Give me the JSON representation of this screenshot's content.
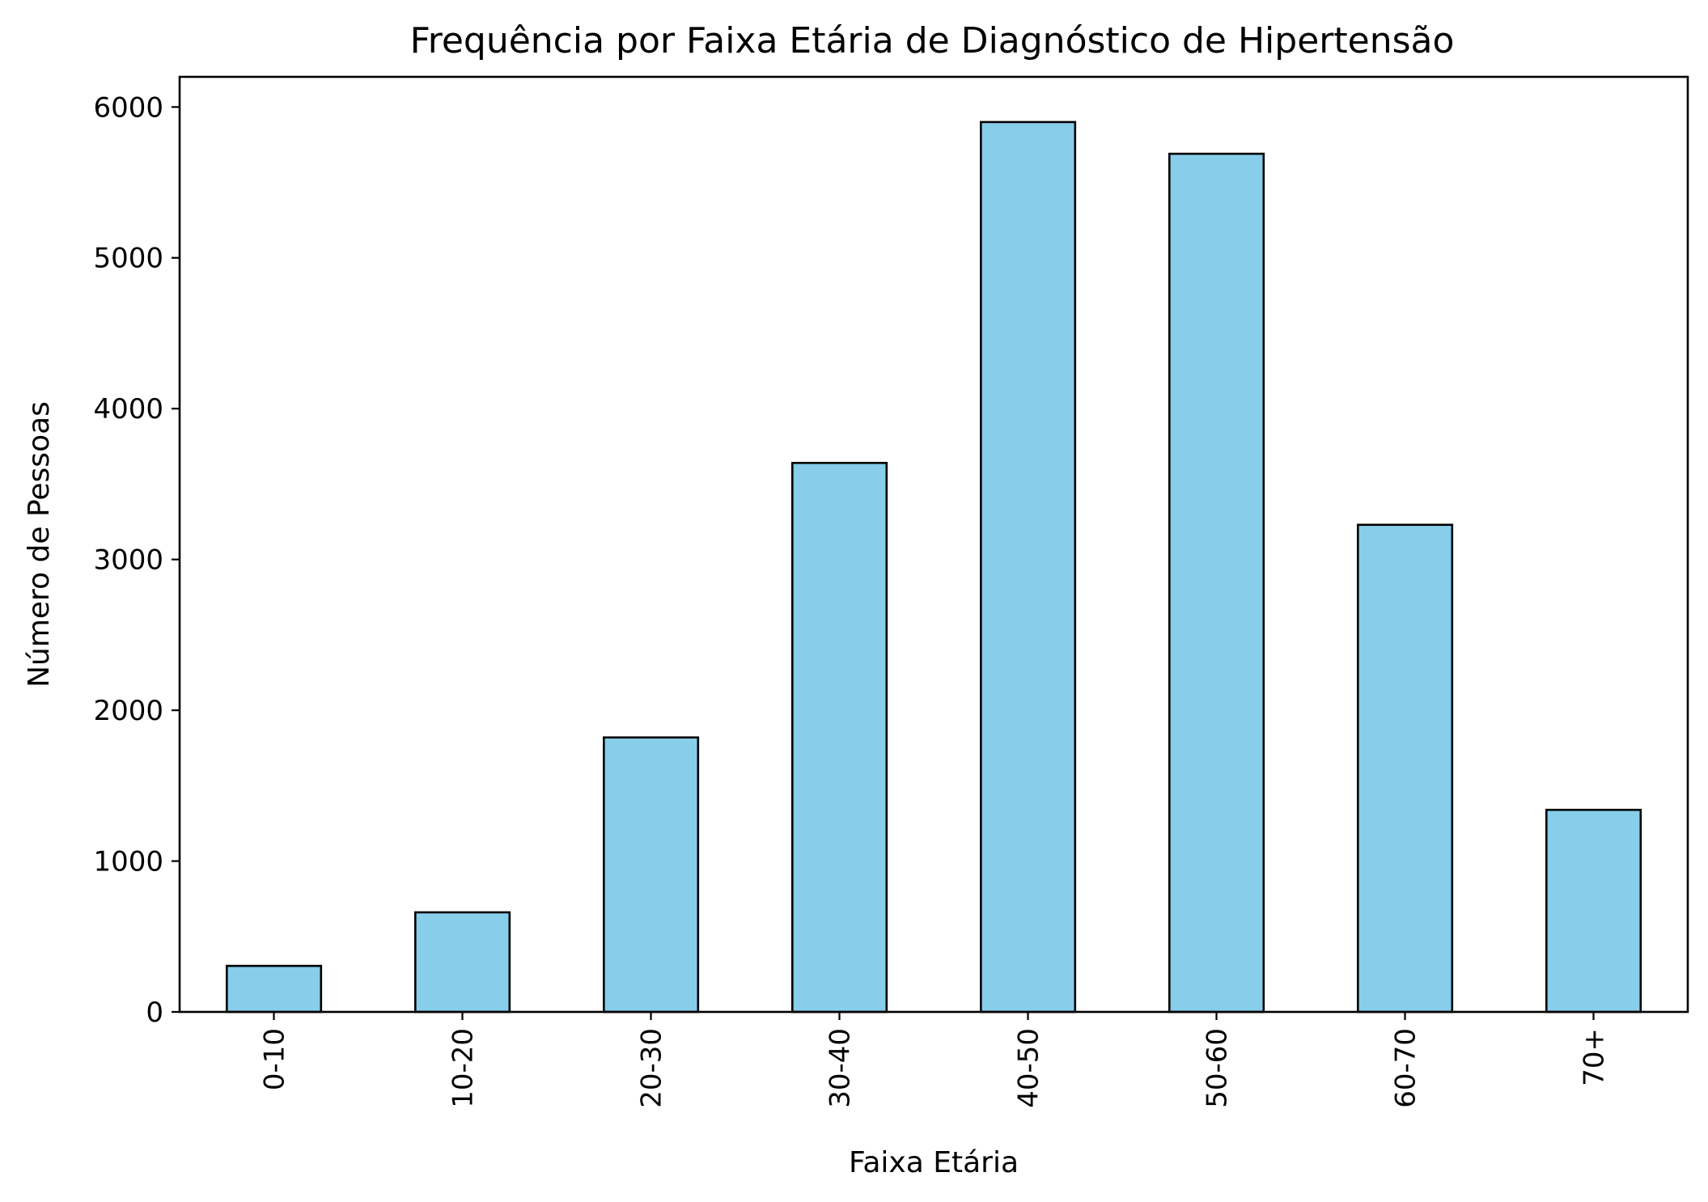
{
  "chart_data": {
    "type": "bar",
    "title": "Frequência por Faixa Etária de Diagnóstico de Hipertensão",
    "xlabel": "Faixa Etária",
    "ylabel": "Número de Pessoas",
    "categories": [
      "0-10",
      "10-20",
      "20-30",
      "30-40",
      "40-50",
      "50-60",
      "60-70",
      "70+"
    ],
    "values": [
      305,
      660,
      1820,
      3640,
      5900,
      5690,
      3230,
      1340
    ],
    "ylim": [
      0,
      6200
    ],
    "yticks": [
      0,
      1000,
      2000,
      3000,
      4000,
      5000,
      6000
    ],
    "grid": false,
    "bar_color": "#87ceeb",
    "edge_color": "#000000",
    "xtick_rotation": "vertical"
  }
}
